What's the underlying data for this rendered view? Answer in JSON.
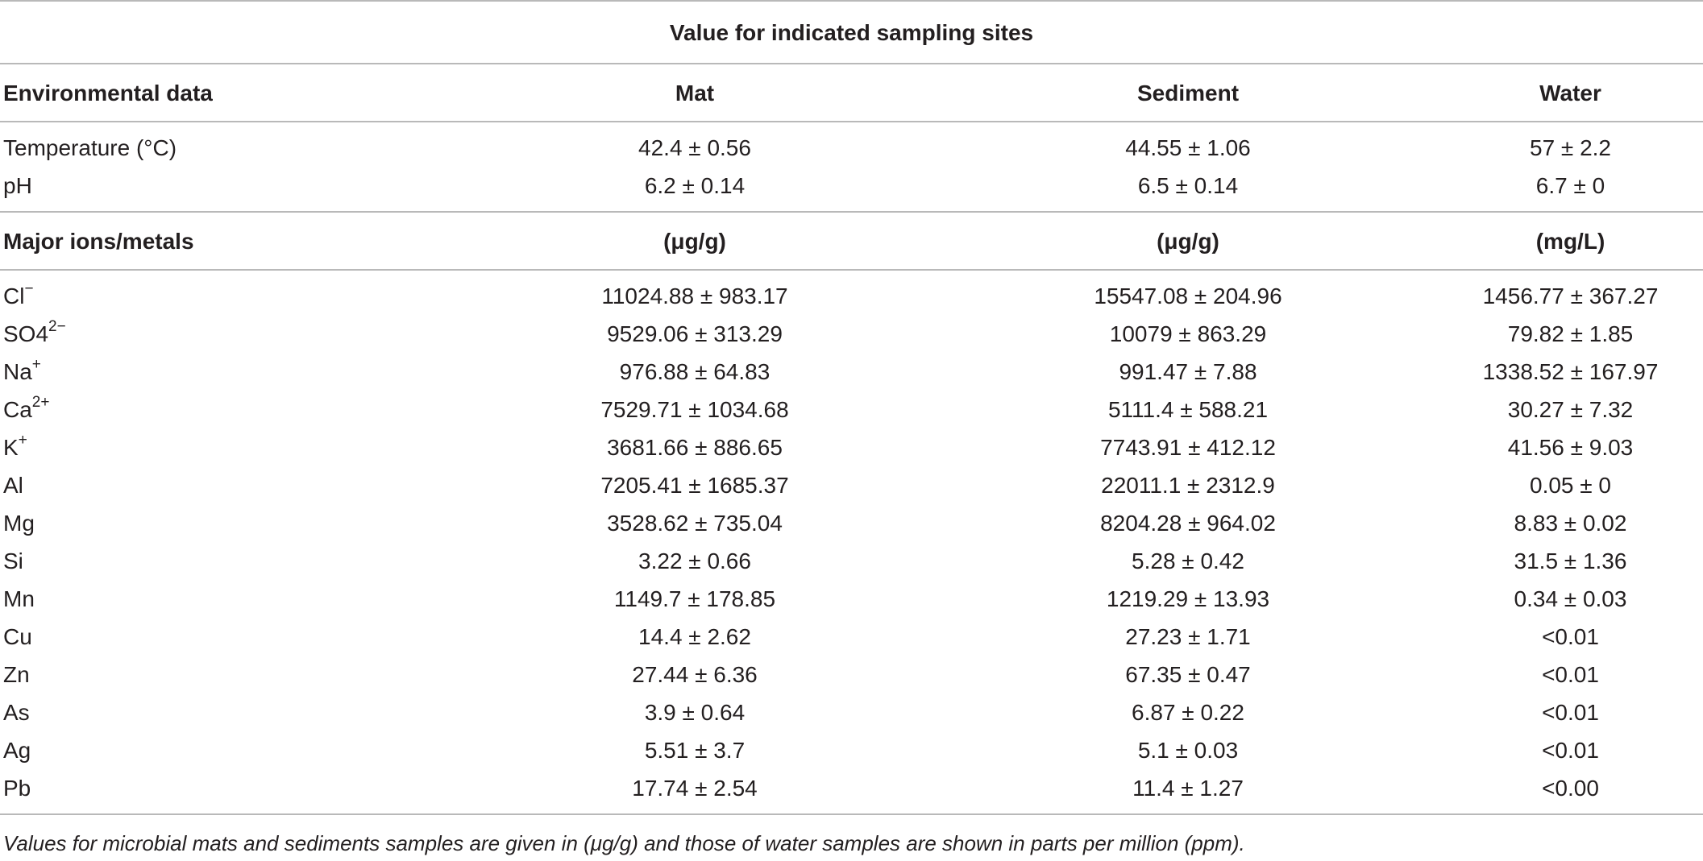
{
  "table": {
    "title": "Value for indicated sampling sites",
    "env_header": [
      "Environmental data",
      "Mat",
      "Sediment",
      "Water"
    ],
    "env_rows": [
      {
        "label": "Temperature (°C)",
        "sup": "",
        "mat": "42.4 ± 0.56",
        "sediment": "44.55 ± 1.06",
        "water": "57 ± 2.2"
      },
      {
        "label": "pH",
        "sup": "",
        "mat": "6.2 ± 0.14",
        "sediment": "6.5 ± 0.14",
        "water": "6.7 ± 0"
      }
    ],
    "ion_header": [
      "Major ions/metals",
      "(μg/g)",
      "(μg/g)",
      "(mg/L)"
    ],
    "ion_rows": [
      {
        "label": "Cl",
        "sup": "−",
        "mat": "11024.88 ± 983.17",
        "sediment": "15547.08 ± 204.96",
        "water": "1456.77 ± 367.27"
      },
      {
        "label": "SO4",
        "sup": "2−",
        "mat": "9529.06 ± 313.29",
        "sediment": "10079 ± 863.29",
        "water": "79.82 ± 1.85"
      },
      {
        "label": "Na",
        "sup": "+",
        "mat": "976.88 ± 64.83",
        "sediment": "991.47 ± 7.88",
        "water": "1338.52 ± 167.97"
      },
      {
        "label": "Ca",
        "sup": "2+",
        "mat": "7529.71 ± 1034.68",
        "sediment": "5111.4 ± 588.21",
        "water": "30.27 ± 7.32"
      },
      {
        "label": "K",
        "sup": "+",
        "mat": "3681.66 ± 886.65",
        "sediment": "7743.91 ± 412.12",
        "water": "41.56 ± 9.03"
      },
      {
        "label": "Al",
        "sup": "",
        "mat": "7205.41 ± 1685.37",
        "sediment": "22011.1 ± 2312.9",
        "water": "0.05 ± 0"
      },
      {
        "label": "Mg",
        "sup": "",
        "mat": "3528.62 ± 735.04",
        "sediment": "8204.28 ± 964.02",
        "water": "8.83 ± 0.02"
      },
      {
        "label": "Si",
        "sup": "",
        "mat": "3.22 ± 0.66",
        "sediment": "5.28 ± 0.42",
        "water": "31.5 ± 1.36"
      },
      {
        "label": "Mn",
        "sup": "",
        "mat": "1149.7 ± 178.85",
        "sediment": "1219.29 ± 13.93",
        "water": "0.34 ± 0.03"
      },
      {
        "label": "Cu",
        "sup": "",
        "mat": "14.4 ± 2.62",
        "sediment": "27.23 ± 1.71",
        "water": "<0.01"
      },
      {
        "label": "Zn",
        "sup": "",
        "mat": "27.44 ± 6.36",
        "sediment": "67.35 ± 0.47",
        "water": "<0.01"
      },
      {
        "label": "As",
        "sup": "",
        "mat": "3.9 ± 0.64",
        "sediment": "6.87 ± 0.22",
        "water": "<0.01"
      },
      {
        "label": "Ag",
        "sup": "",
        "mat": "5.51 ± 3.7",
        "sediment": "5.1 ± 0.03",
        "water": "<0.01"
      },
      {
        "label": "Pb",
        "sup": "",
        "mat": "17.74 ± 2.54",
        "sediment": "11.4 ± 1.27",
        "water": "<0.00"
      }
    ],
    "footnote": "Values for microbial mats and sediments samples are given in (μg/g) and those of water samples are shown in parts per million (ppm)."
  }
}
